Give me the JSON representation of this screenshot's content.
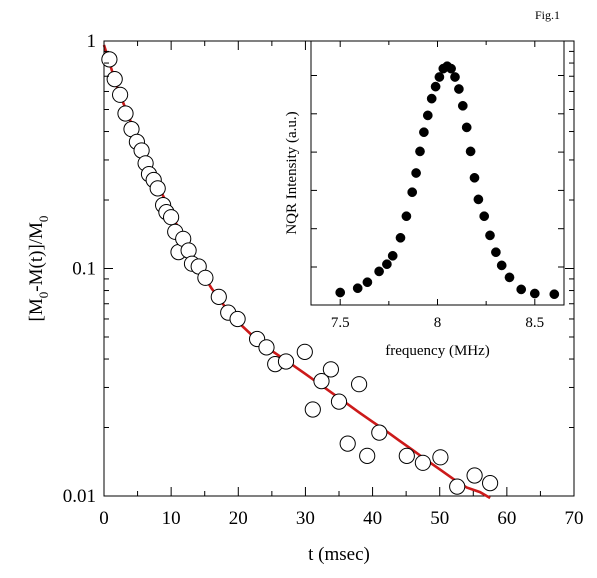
{
  "figure_label": "Fig.1",
  "chart_data": [
    {
      "type": "scatter",
      "role": "main",
      "xlabel": "t (msec)",
      "ylabel_parts": [
        "[M",
        "0",
        "-M(t)]/M",
        "0"
      ],
      "xlim": [
        0,
        70
      ],
      "ylim": [
        0.01,
        1
      ],
      "yscale": "log",
      "x_ticks": [
        0,
        10,
        20,
        30,
        40,
        50,
        60,
        70
      ],
      "x_tick_labels": [
        "0",
        "10",
        "20",
        "30",
        "40",
        "50",
        "60",
        "70"
      ],
      "y_ticks": [
        0.01,
        0.1,
        1
      ],
      "y_tick_labels": [
        "0.01",
        "0.1",
        "1"
      ],
      "grid": false,
      "marker": "open-circle",
      "fit_color": "#cc1a1a",
      "points": [
        {
          "x": 0.8,
          "y": 0.83
        },
        {
          "x": 1.6,
          "y": 0.68
        },
        {
          "x": 2.4,
          "y": 0.58
        },
        {
          "x": 3.2,
          "y": 0.48
        },
        {
          "x": 4.1,
          "y": 0.41
        },
        {
          "x": 4.9,
          "y": 0.36
        },
        {
          "x": 5.6,
          "y": 0.33
        },
        {
          "x": 6.2,
          "y": 0.29
        },
        {
          "x": 6.7,
          "y": 0.26
        },
        {
          "x": 7.4,
          "y": 0.245
        },
        {
          "x": 8.0,
          "y": 0.225
        },
        {
          "x": 8.8,
          "y": 0.19
        },
        {
          "x": 9.3,
          "y": 0.177
        },
        {
          "x": 10.0,
          "y": 0.168
        },
        {
          "x": 10.6,
          "y": 0.145
        },
        {
          "x": 11.1,
          "y": 0.118
        },
        {
          "x": 11.8,
          "y": 0.135
        },
        {
          "x": 12.6,
          "y": 0.12
        },
        {
          "x": 13.1,
          "y": 0.105
        },
        {
          "x": 14.1,
          "y": 0.102
        },
        {
          "x": 15.1,
          "y": 0.091
        },
        {
          "x": 17.1,
          "y": 0.075
        },
        {
          "x": 18.5,
          "y": 0.064
        },
        {
          "x": 19.9,
          "y": 0.06
        },
        {
          "x": 22.8,
          "y": 0.049
        },
        {
          "x": 24.2,
          "y": 0.045
        },
        {
          "x": 25.5,
          "y": 0.038
        },
        {
          "x": 27.1,
          "y": 0.039
        },
        {
          "x": 29.9,
          "y": 0.043
        },
        {
          "x": 31.1,
          "y": 0.024
        },
        {
          "x": 32.4,
          "y": 0.032
        },
        {
          "x": 33.8,
          "y": 0.036
        },
        {
          "x": 35.0,
          "y": 0.026
        },
        {
          "x": 36.3,
          "y": 0.017
        },
        {
          "x": 38.0,
          "y": 0.031
        },
        {
          "x": 39.2,
          "y": 0.015
        },
        {
          "x": 41.0,
          "y": 0.019
        },
        {
          "x": 45.1,
          "y": 0.015
        },
        {
          "x": 47.5,
          "y": 0.014
        },
        {
          "x": 50.1,
          "y": 0.0148
        },
        {
          "x": 52.6,
          "y": 0.011
        },
        {
          "x": 55.2,
          "y": 0.0123
        },
        {
          "x": 57.5,
          "y": 0.0114
        }
      ],
      "fit_curve": {
        "x": [
          0,
          2,
          4,
          6,
          8,
          10,
          12,
          14,
          16,
          18,
          20,
          22,
          24,
          26,
          28,
          30,
          32,
          34,
          36,
          38,
          40,
          42,
          44,
          46,
          48,
          50,
          52,
          54,
          56,
          57.5
        ],
        "y": [
          0.96,
          0.62,
          0.44,
          0.32,
          0.235,
          0.175,
          0.132,
          0.102,
          0.082,
          0.068,
          0.058,
          0.051,
          0.0455,
          0.0415,
          0.0378,
          0.0344,
          0.0312,
          0.0283,
          0.0257,
          0.0233,
          0.0212,
          0.0193,
          0.0175,
          0.0159,
          0.0144,
          0.0131,
          0.0119,
          0.0109,
          0.0104,
          0.0098
        ]
      }
    },
    {
      "type": "scatter",
      "role": "inset",
      "xlabel": "frequency (MHz)",
      "ylabel": "NQR Intensity (a.u.)",
      "xlim": [
        7.35,
        8.65
      ],
      "ylim": [
        0,
        1.1
      ],
      "x_ticks": [
        7.5,
        8,
        8.5
      ],
      "x_tick_labels": [
        "7.5",
        "8",
        "8.5"
      ],
      "y_tick_count": 6,
      "grid": false,
      "marker": "filled-circle",
      "points": [
        {
          "x": 7.5,
          "y": 0.052
        },
        {
          "x": 7.59,
          "y": 0.07
        },
        {
          "x": 7.64,
          "y": 0.095
        },
        {
          "x": 7.7,
          "y": 0.14
        },
        {
          "x": 7.74,
          "y": 0.17
        },
        {
          "x": 7.77,
          "y": 0.205
        },
        {
          "x": 7.81,
          "y": 0.28
        },
        {
          "x": 7.84,
          "y": 0.37
        },
        {
          "x": 7.87,
          "y": 0.47
        },
        {
          "x": 7.89,
          "y": 0.55
        },
        {
          "x": 7.91,
          "y": 0.64
        },
        {
          "x": 7.93,
          "y": 0.72
        },
        {
          "x": 7.95,
          "y": 0.79
        },
        {
          "x": 7.97,
          "y": 0.86
        },
        {
          "x": 7.99,
          "y": 0.91
        },
        {
          "x": 8.01,
          "y": 0.95
        },
        {
          "x": 8.03,
          "y": 0.985
        },
        {
          "x": 8.05,
          "y": 0.995
        },
        {
          "x": 8.07,
          "y": 0.985
        },
        {
          "x": 8.09,
          "y": 0.95
        },
        {
          "x": 8.11,
          "y": 0.9
        },
        {
          "x": 8.13,
          "y": 0.83
        },
        {
          "x": 8.15,
          "y": 0.74
        },
        {
          "x": 8.17,
          "y": 0.64
        },
        {
          "x": 8.19,
          "y": 0.53
        },
        {
          "x": 8.21,
          "y": 0.44
        },
        {
          "x": 8.24,
          "y": 0.37
        },
        {
          "x": 8.27,
          "y": 0.29
        },
        {
          "x": 8.3,
          "y": 0.22
        },
        {
          "x": 8.33,
          "y": 0.165
        },
        {
          "x": 8.37,
          "y": 0.115
        },
        {
          "x": 8.43,
          "y": 0.065
        },
        {
          "x": 8.5,
          "y": 0.048
        },
        {
          "x": 8.6,
          "y": 0.045
        }
      ]
    }
  ]
}
